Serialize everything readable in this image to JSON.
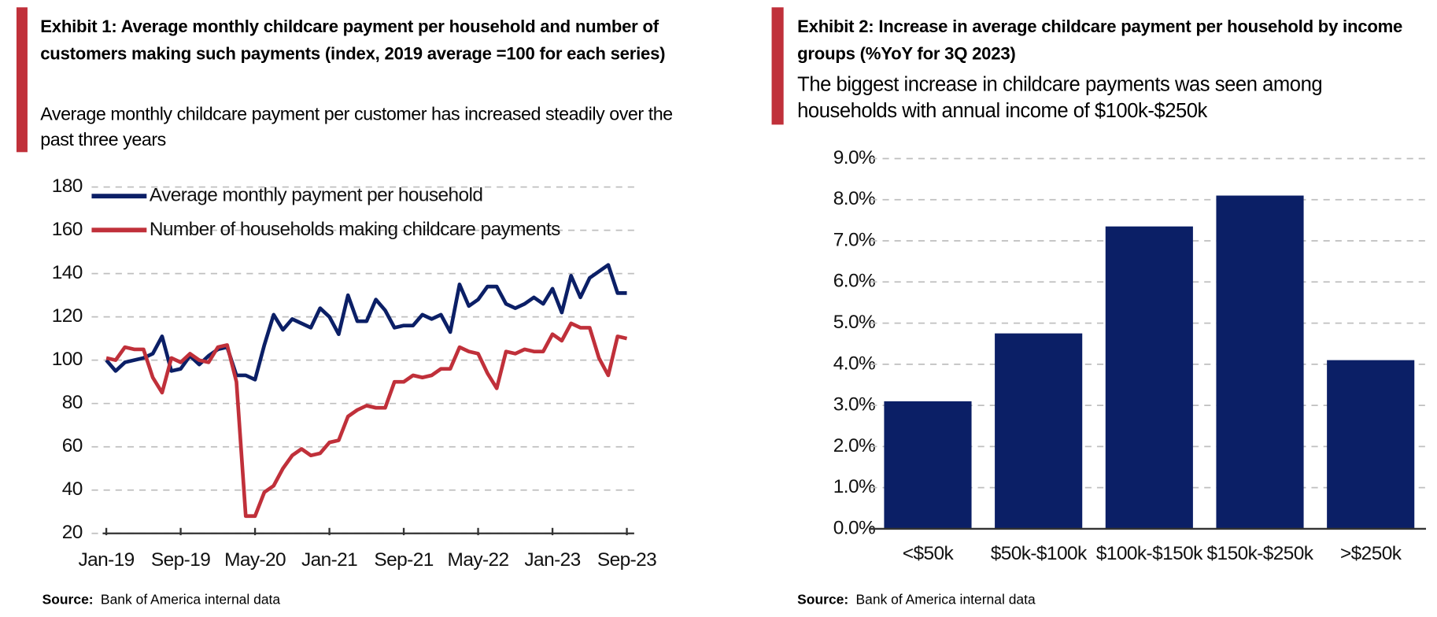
{
  "chart_data": [
    {
      "type": "line",
      "title": "Exhibit 1: Average monthly childcare payment per household and number of customers making such payments (index, 2019 average =100 for each series)",
      "subtitle": "Average monthly childcare payment per customer has increased steadily over the past three years",
      "source_label": "Source:",
      "source_text": "Bank of America internal data",
      "categories": [
        "Jan-19",
        null,
        null,
        null,
        null,
        null,
        null,
        null,
        "Sep-19",
        null,
        null,
        null,
        null,
        null,
        null,
        null,
        "May-20",
        null,
        null,
        null,
        null,
        null,
        null,
        null,
        "Jan-21",
        null,
        null,
        null,
        null,
        null,
        null,
        null,
        "Sep-21",
        null,
        null,
        null,
        null,
        null,
        null,
        null,
        "May-22",
        null,
        null,
        null,
        null,
        null,
        null,
        null,
        "Jan-23",
        null,
        null,
        null,
        null,
        null,
        null,
        null,
        "Sep-23"
      ],
      "series": [
        {
          "name": "Average monthly payment per household",
          "color": "#0b1f66",
          "values": [
            100,
            95,
            99,
            100,
            101,
            103,
            111,
            95,
            96,
            102,
            98,
            102,
            105,
            106,
            93,
            93,
            91,
            107,
            121,
            114,
            119,
            117,
            115,
            124,
            120,
            112,
            130,
            118,
            118,
            128,
            123,
            115,
            116,
            116,
            121,
            119,
            121,
            113,
            135,
            125,
            128,
            134,
            134,
            126,
            124,
            126,
            129,
            126,
            133,
            122,
            139,
            129,
            138,
            141,
            144,
            131,
            131
          ]
        },
        {
          "name": "Number of households making childcare payments",
          "color": "#c0303a",
          "values": [
            101,
            100,
            106,
            105,
            105,
            92,
            85,
            101,
            99,
            103,
            100,
            99,
            106,
            107,
            90,
            28,
            28,
            39,
            42,
            50,
            56,
            59,
            56,
            57,
            62,
            63,
            74,
            77,
            79,
            78,
            78,
            90,
            90,
            93,
            92,
            93,
            96,
            96,
            106,
            104,
            103,
            94,
            87,
            104,
            103,
            105,
            104,
            104,
            112,
            109,
            117,
            115,
            115,
            101,
            93,
            111,
            110
          ]
        }
      ],
      "ylim": [
        20,
        180
      ],
      "yticks": [
        20,
        40,
        60,
        80,
        100,
        120,
        140,
        160,
        180
      ],
      "grid": true,
      "legend": "top-left"
    },
    {
      "type": "bar",
      "title": "Exhibit 2: Increase in average childcare payment per household by income groups (%YoY for 3Q 2023)",
      "subtitle": "The biggest increase in childcare payments was seen among households with annual income of $100k-$250k",
      "source_label": "Source:",
      "source_text": "Bank of America internal data",
      "categories": [
        "<$50k",
        "$50k-$100k",
        "$100k-$150k",
        "$150k-$250k",
        ">$250k"
      ],
      "values": [
        3.1,
        4.75,
        7.35,
        8.1,
        4.1
      ],
      "color": "#0b1f66",
      "ylim": [
        0,
        9
      ],
      "yticks": [
        {
          "value": 0,
          "label": "0.0%"
        },
        {
          "value": 1,
          "label": "1.0%"
        },
        {
          "value": 2,
          "label": "2.0%"
        },
        {
          "value": 3,
          "label": "3.0%"
        },
        {
          "value": 4,
          "label": "4.0%"
        },
        {
          "value": 5,
          "label": "5.0%"
        },
        {
          "value": 6,
          "label": "6.0%"
        },
        {
          "value": 7,
          "label": "7.0%"
        },
        {
          "value": 8,
          "label": "8.0%"
        },
        {
          "value": 9,
          "label": "9.0%"
        }
      ],
      "grid": true
    }
  ]
}
